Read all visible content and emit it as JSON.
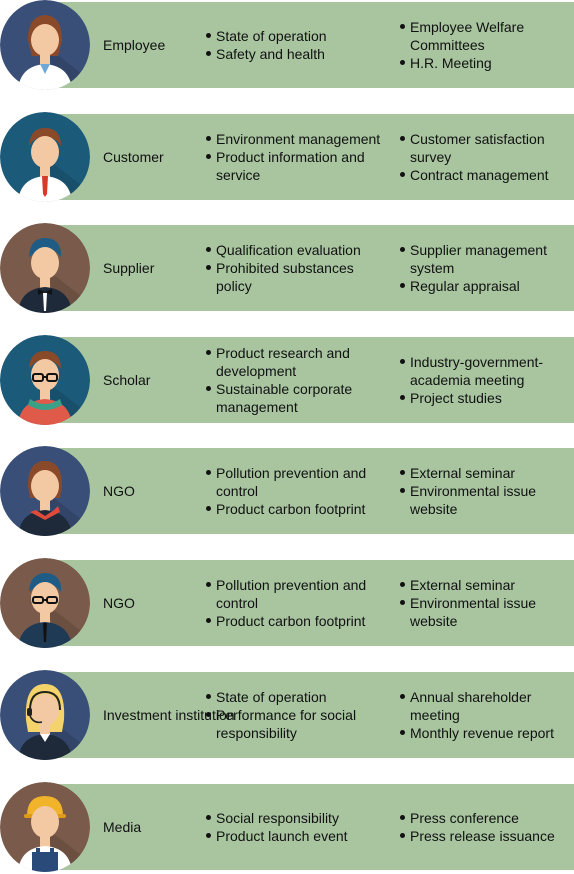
{
  "rows": [
    {
      "label": "Employee",
      "avatar": "employee-avatar-icon",
      "bg": "#3a4f78",
      "col1": [
        "State of operation",
        "Safety and health"
      ],
      "col2": [
        "Employee Welfare Committees",
        "H.R. Meeting"
      ]
    },
    {
      "label": "Customer",
      "avatar": "customer-avatar-icon",
      "bg": "#1c5a7a",
      "col1": [
        "Environment management",
        "Product information and service"
      ],
      "col2": [
        "Customer satisfaction survey",
        "Contract management"
      ]
    },
    {
      "label": "Supplier",
      "avatar": "supplier-avatar-icon",
      "bg": "#7a5a4a",
      "col1": [
        "Qualification evaluation",
        "Prohibited substances policy"
      ],
      "col2": [
        "Supplier management system",
        "Regular appraisal"
      ]
    },
    {
      "label": "Scholar",
      "avatar": "scholar-avatar-icon",
      "bg": "#1c5a7a",
      "col1": [
        "Product research and development",
        "Sustainable corporate management"
      ],
      "col2": [
        "Industry-government-academia meeting",
        "Project studies"
      ]
    },
    {
      "label": "NGO",
      "avatar": "ngo-woman-avatar-icon",
      "bg": "#3a4f78",
      "col1": [
        "Pollution prevention and control",
        "Product carbon footprint"
      ],
      "col2": [
        "External seminar",
        "Environmental issue website"
      ]
    },
    {
      "label": "NGO",
      "avatar": "ngo-man-avatar-icon",
      "bg": "#7a5a4a",
      "col1": [
        "Pollution prevention and control",
        "Product carbon footprint"
      ],
      "col2": [
        "External seminar",
        "Environmental issue website"
      ]
    },
    {
      "label": "Investment institution",
      "avatar": "investor-avatar-icon",
      "bg": "#3a4f78",
      "col1": [
        "State of operation",
        "Performance for social responsibility"
      ],
      "col2": [
        "Annual shareholder meeting",
        "Monthly revenue report"
      ]
    },
    {
      "label": "Media",
      "avatar": "media-avatar-icon",
      "bg": "#7a5a4a",
      "col1": [
        "Social responsibility",
        "Product launch event"
      ],
      "col2": [
        "Press conference",
        "Press release issuance"
      ]
    }
  ],
  "colors": {
    "band": "#a8c5a0",
    "skin": "#f3c9a3",
    "hair": "#8a4a2a"
  }
}
